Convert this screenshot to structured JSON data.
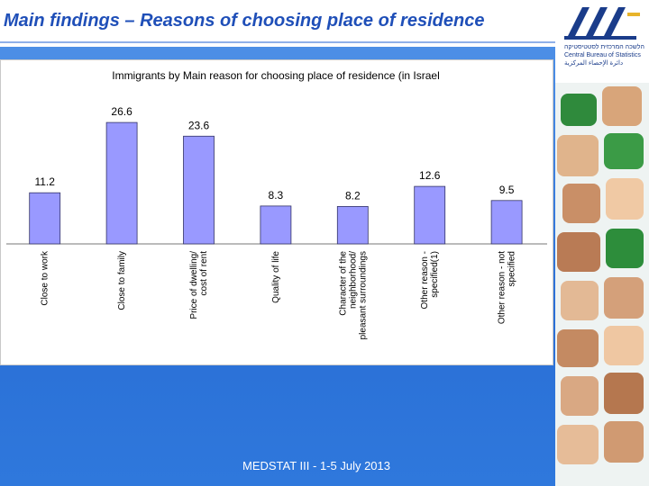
{
  "slide": {
    "title": "Main findings – Reasons of choosing place of residence",
    "footer": "MEDSTAT III - 1-5 July 2013"
  },
  "logo": {
    "lines": [
      "הלשכה המרכזית לסטטיסטיקה",
      "Central Bureau of Statistics",
      "دائرة الإحصاء المركزية"
    ],
    "color": "#1a3c8a"
  },
  "colors": {
    "title": "#1f4fb8",
    "bar_fill": "#9999ff",
    "bar_stroke": "#333366",
    "background": "#2a6fd6"
  },
  "chart_data": {
    "type": "bar",
    "title": "Immigrants by Main reason for choosing place of residence (in Israel",
    "categories": [
      "Close to work",
      "Close to family",
      "Price of dwelling/ cost of rent",
      "Quality of life",
      "Character of the neighborhood/ pleasant surroundings",
      "Other reason - specified(1)",
      "Other reason - not specified"
    ],
    "category_lines": [
      [
        "Close to work"
      ],
      [
        "Close to family"
      ],
      [
        "Price of dwelling/",
        "cost of rent"
      ],
      [
        "Quality of life"
      ],
      [
        "Character of the",
        "neighborhood/",
        "pleasant surroundings"
      ],
      [
        "Other reason -",
        "specified(1)"
      ],
      [
        "Other reason - not",
        "specified"
      ]
    ],
    "values": [
      11.2,
      26.6,
      23.6,
      8.3,
      8.2,
      12.6,
      9.5
    ],
    "value_labels": [
      "11.2",
      "26.6",
      "23.6",
      "8.3",
      "8.2",
      "12.6",
      "9.5"
    ],
    "ylim": [
      0,
      28
    ],
    "grid": false,
    "legend": "none"
  }
}
